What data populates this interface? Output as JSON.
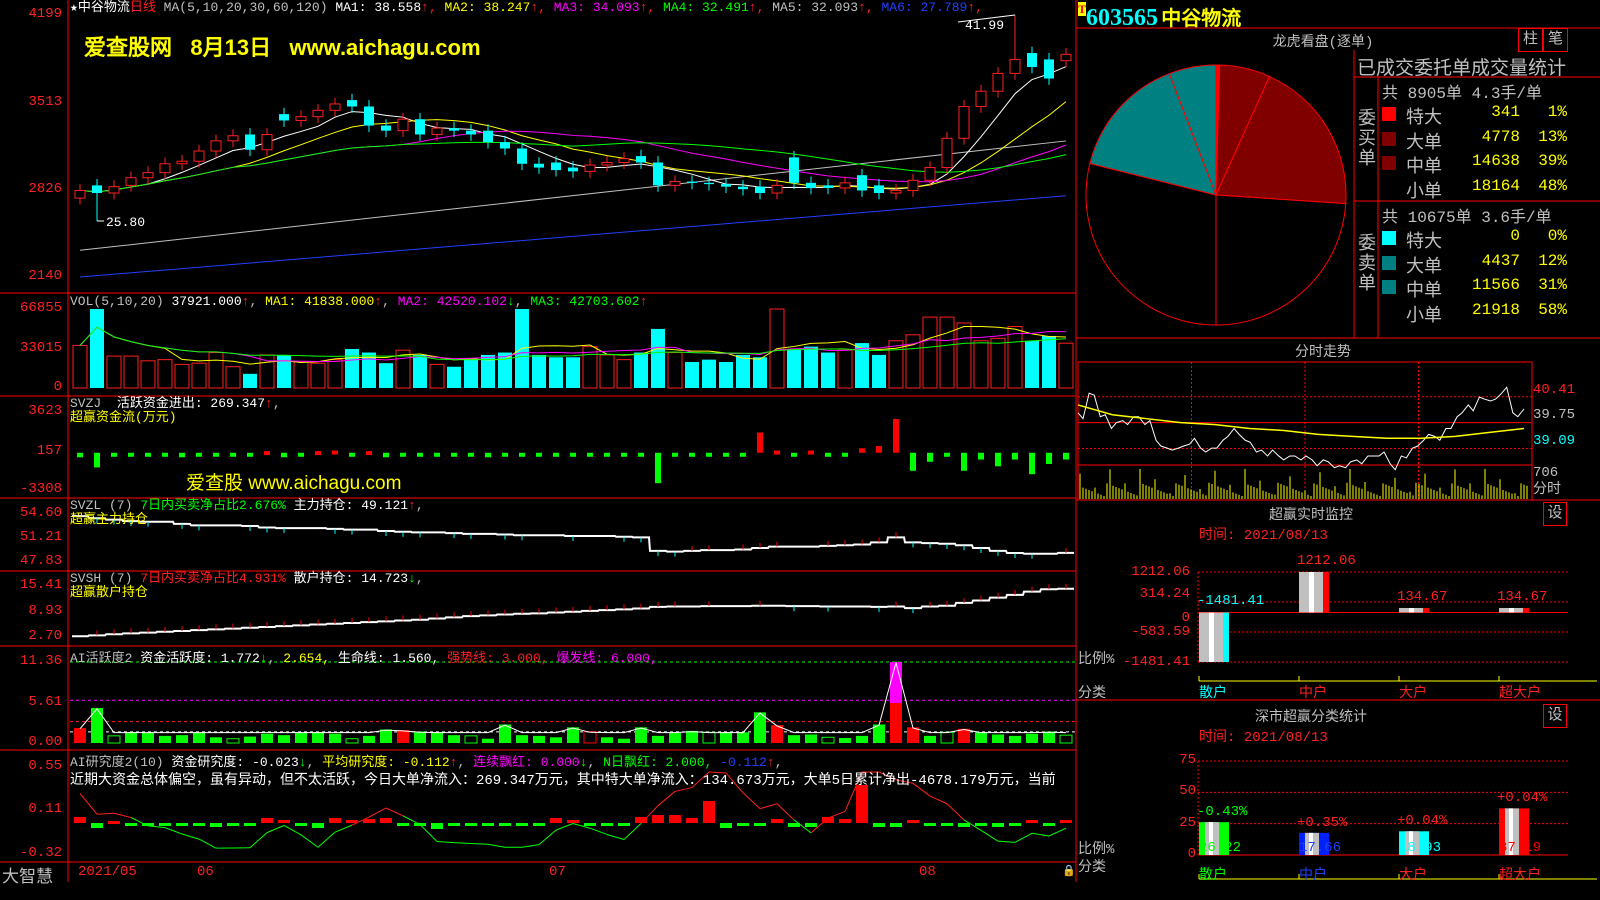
{
  "stock": {
    "code": "603565",
    "name": "中谷物流",
    "badge": "T"
  },
  "main": {
    "title_star": "★",
    "title_name": "中谷物流",
    "period": "日线",
    "ma_params": "MA(5,10,20,30,60,120)",
    "ma_legend": [
      {
        "label": "MA1: 38.558",
        "arrow": "↑",
        "color": "#ffffff"
      },
      {
        "label": "MA2: 38.247",
        "arrow": "↑",
        "color": "#ffff00"
      },
      {
        "label": "MA3: 34.093",
        "arrow": "↑",
        "color": "#ff00ff"
      },
      {
        "label": "MA4: 32.491",
        "arrow": "↑",
        "color": "#00ff00"
      },
      {
        "label": "MA5: 32.093",
        "arrow": "↑",
        "color": "#c0c0c0"
      },
      {
        "label": "MA6: 27.789",
        "arrow": "↑",
        "color": "#2040ff"
      }
    ],
    "watermark": {
      "site": "爱查股网",
      "date": "8月13日",
      "url": "www.aichagu.com"
    },
    "y_ticks": [
      "4199",
      "3513",
      "2826",
      "2140"
    ],
    "high_label": "41.99",
    "low_label": "25.80"
  },
  "chart_data": [
    {
      "type": "candlestick",
      "name": "日线",
      "ylim": [
        21.4,
        41.99
      ],
      "open": [
        27.6,
        28.6,
        28.0,
        28.6,
        29.2,
        29.6,
        30.3,
        30.5,
        31.3,
        32.1,
        32.6,
        31.4,
        34.2,
        33.7,
        34.0,
        34.5,
        35.3,
        34.8,
        33.3,
        32.9,
        33.8,
        32.6,
        33.1,
        32.9,
        32.9,
        32.0,
        31.5,
        30.3,
        30.4,
        30.0,
        29.7,
        30.2,
        30.4,
        30.9,
        30.4,
        28.6,
        28.9,
        28.8,
        28.7,
        28.5,
        28.5,
        28.0,
        30.8,
        28.8,
        28.6,
        28.4,
        29.4,
        28.6,
        28.0,
        28.2,
        29.0,
        30.0,
        32.3,
        34.8,
        36.0,
        37.4,
        39.0,
        38.5,
        38.4
      ],
      "close": [
        28.2,
        28.0,
        28.5,
        29.2,
        29.6,
        30.3,
        30.5,
        31.3,
        32.1,
        32.5,
        31.4,
        32.6,
        33.7,
        34.0,
        34.5,
        35.0,
        34.8,
        33.3,
        32.9,
        33.8,
        32.6,
        33.1,
        32.9,
        32.6,
        32.0,
        31.5,
        30.3,
        30.0,
        29.8,
        29.7,
        30.2,
        30.4,
        30.7,
        30.4,
        28.6,
        28.9,
        28.8,
        28.7,
        28.5,
        28.3,
        28.0,
        28.6,
        28.8,
        28.4,
        28.4,
        28.8,
        28.2,
        28.0,
        28.2,
        29.0,
        30.0,
        32.3,
        34.8,
        36.0,
        37.4,
        38.5,
        37.9,
        37.0,
        38.9
      ],
      "high": 41.99,
      "low": 25.8,
      "ma_long": {
        "MA5": [
          23.5,
          32.093
        ],
        "MA6": [
          21.4,
          27.789
        ]
      },
      "x_ticks": [
        "2021/05",
        "06",
        "07",
        "08"
      ]
    },
    {
      "type": "bar",
      "name": "VOL",
      "ylim": [
        0,
        66855
      ],
      "y_ticks": [
        "66855",
        "33015",
        "0"
      ],
      "values": [
        36000,
        66855,
        27000,
        27000,
        23000,
        24000,
        20000,
        21000,
        30000,
        18000,
        12000,
        28000,
        28000,
        22000,
        21000,
        24000,
        33000,
        30000,
        21000,
        32000,
        28000,
        20000,
        18000,
        25000,
        28000,
        30000,
        66855,
        28000,
        26000,
        26000,
        35000,
        28000,
        24000,
        30000,
        50000,
        30000,
        22000,
        24000,
        22000,
        28000,
        26000,
        66855,
        33000,
        35000,
        30000,
        32000,
        38000,
        28000,
        40000,
        45000,
        60000,
        60000,
        55000,
        40000,
        42000,
        52000,
        40000,
        44000,
        37921
      ]
    },
    {
      "type": "bar",
      "name": "SVZJ",
      "ylim": [
        -3308,
        3623
      ],
      "y_ticks": [
        "3623",
        "157",
        "-3308"
      ],
      "values": [
        -400,
        -1300,
        -300,
        -200,
        -350,
        -300,
        -400,
        -250,
        -200,
        -350,
        -300,
        150,
        -400,
        -300,
        150,
        200,
        -300,
        150,
        -400,
        -200,
        -300,
        -250,
        -350,
        -150,
        -400,
        -300,
        -350,
        -200,
        -250,
        -300,
        -150,
        -300,
        -200,
        -250,
        -2700,
        -150,
        -200,
        -150,
        -300,
        -200,
        1800,
        200,
        -300,
        200,
        -250,
        -200,
        400,
        600,
        3000,
        -1600,
        -800,
        -300,
        -1600,
        -600,
        -1200,
        -600,
        -1900,
        -1000,
        -600
      ]
    },
    {
      "type": "line",
      "name": "SVZL",
      "ylim": [
        47.83,
        54.6
      ],
      "y_ticks": [
        "54.60",
        "51.21",
        "47.83"
      ],
      "values": [
        54.3,
        54.0,
        53.8,
        53.6,
        53.5,
        53.5,
        53.2,
        53.0,
        53.0,
        53.0,
        52.9,
        52.7,
        52.6,
        52.6,
        52.6,
        52.5,
        52.4,
        52.4,
        52.2,
        52.1,
        52.0,
        52.0,
        51.9,
        51.8,
        51.8,
        51.7,
        51.6,
        51.6,
        51.6,
        51.5,
        51.5,
        51.5,
        51.4,
        51.3,
        49.4,
        49.3,
        49.4,
        49.5,
        49.5,
        49.6,
        49.8,
        50.0,
        50.0,
        50.0,
        50.1,
        50.2,
        50.3,
        50.6,
        51.3,
        50.6,
        50.5,
        50.4,
        50.2,
        49.8,
        49.4,
        49.1,
        49.0,
        49.0,
        49.121
      ]
    },
    {
      "type": "line",
      "name": "SVSH",
      "ylim": [
        2.7,
        15.41
      ],
      "y_ticks": [
        "15.41",
        "8.93",
        "2.70"
      ],
      "values": [
        2.9,
        3.1,
        3.4,
        3.6,
        3.8,
        4.0,
        4.2,
        4.4,
        4.6,
        4.8,
        5.0,
        5.2,
        5.4,
        5.6,
        5.8,
        6.0,
        6.2,
        6.4,
        6.6,
        6.8,
        7.0,
        7.3,
        7.6,
        7.9,
        8.1,
        8.3,
        8.5,
        8.6,
        8.8,
        9.0,
        9.2,
        9.4,
        9.6,
        9.8,
        10.2,
        10.3,
        10.3,
        10.4,
        10.4,
        10.4,
        10.5,
        10.5,
        10.4,
        10.4,
        10.3,
        10.3,
        10.3,
        10.2,
        10.3,
        9.9,
        10.3,
        10.5,
        11.2,
        11.8,
        12.5,
        13.2,
        14.0,
        14.6,
        14.723
      ]
    },
    {
      "type": "bar",
      "name": "AI活跃度2",
      "ylim": [
        0,
        11.36
      ],
      "y_ticks": [
        "11.36",
        "5.61",
        "0.00"
      ],
      "values": [
        2.1,
        4.9,
        1.0,
        1.5,
        1.4,
        1.0,
        1.1,
        1.5,
        0.8,
        0.6,
        0.9,
        1.3,
        1.1,
        1.4,
        1.5,
        1.3,
        0.6,
        1.0,
        1.9,
        1.8,
        1.6,
        1.4,
        1.1,
        1.0,
        0.6,
        2.6,
        1.1,
        1.0,
        0.8,
        2.2,
        1.6,
        0.8,
        0.6,
        2.2,
        1.0,
        1.4,
        1.7,
        1.5,
        1.5,
        1.5,
        4.3,
        2.5,
        1.1,
        1.2,
        0.8,
        0.7,
        1.0,
        2.6,
        11.36,
        2.2,
        1.0,
        1.5,
        2.0,
        1.5,
        1.2,
        1.0,
        1.3,
        1.6,
        1.1
      ],
      "lines": {
        "生命线": 1.56,
        "强势线": 3.0,
        "爆发线": 6.0,
        "top": 11.36
      }
    },
    {
      "type": "bar",
      "name": "AI研究度2(10)",
      "ylim": [
        -0.32,
        0.55
      ],
      "y_ticks": [
        "0.55",
        "0.11",
        "-0.32"
      ],
      "values": [
        0.05,
        -0.06,
        0.01,
        -0.01,
        -0.03,
        -0.01,
        -0.03,
        -0.03,
        -0.05,
        -0.02,
        -0.02,
        0.04,
        0.02,
        -0.04,
        -0.06,
        0.04,
        0.02,
        0.03,
        0.04,
        -0.02,
        -0.03,
        -0.07,
        -0.02,
        -0.02,
        -0.02,
        -0.03,
        -0.02,
        -0.01,
        0.04,
        0.02,
        -0.02,
        -0.03,
        -0.03,
        0.05,
        0.07,
        0.07,
        0.04,
        0.21,
        -0.06,
        -0.04,
        -0.04,
        0.03,
        -0.05,
        -0.05,
        0.05,
        0.03,
        0.37,
        -0.05,
        -0.05,
        0.02,
        -0.02,
        -0.01,
        -0.05,
        -0.04,
        -0.05,
        -0.02,
        0.02,
        -0.02,
        0.02
      ]
    },
    {
      "type": "pie",
      "name": "龙虎看盘(逐单)"
    },
    {
      "type": "line",
      "name": "分时走势",
      "y_ticks": [
        "40.41",
        "39.75",
        "39.09"
      ],
      "ylim": [
        38.44,
        41.04
      ],
      "price": [
        40.0,
        40.5,
        39.9,
        39.6,
        39.8,
        39.9,
        39.7,
        39.3,
        39.1,
        39.1,
        39.2,
        39.1,
        39.1,
        39.3,
        39.6,
        39.3,
        39.0,
        38.9,
        38.9,
        38.9,
        38.8,
        38.8,
        38.8,
        38.6,
        38.6,
        38.8,
        38.9,
        38.9,
        38.7,
        38.9,
        39.1,
        39.3,
        39.4,
        39.6,
        39.9,
        40.2,
        40.4,
        40.3,
        40.5,
        40.0,
        40.1
      ],
      "avg": [
        40.2,
        39.95,
        39.85,
        39.75,
        39.7,
        39.6,
        39.55,
        39.45,
        39.4,
        39.35,
        39.35,
        39.4,
        39.5,
        39.6
      ],
      "vol_label": "706",
      "vol_unit": "分时"
    },
    {
      "type": "bar",
      "name": "超赢实时监控",
      "categories": [
        "散户",
        "中户",
        "大户",
        "超大户"
      ],
      "values": [
        -1481.41,
        1212.06,
        134.67,
        134.67
      ],
      "ylim": [
        -1481.41,
        1212.06
      ],
      "y_ticks": [
        "1212.06",
        "314.24",
        "0",
        "-583.59",
        "-1481.41"
      ]
    },
    {
      "type": "bar",
      "name": "深市超赢分类统计",
      "categories": [
        "散户",
        "中户",
        "大户",
        "超大户"
      ],
      "values": [
        26.22,
        17.66,
        18.93,
        37.19
      ],
      "changes": [
        "-0.43%",
        "+0.35%",
        "+0.04%",
        "+0.04%"
      ],
      "ylim": [
        0,
        75
      ],
      "y_ticks": [
        "75",
        "50",
        "25",
        "0"
      ]
    }
  ],
  "vol_legend": {
    "name": "VOL(5,10,20)",
    "value": "37921.000",
    "ma1": "MA1: 41838.000",
    "ma2": "MA2: 42520.102",
    "ma3": "MA3: 42703.602"
  },
  "svzj_legend": {
    "name": "SVZJ",
    "label": "活跃资金进出: 269.347",
    "sub": "超赢资金流(万元)",
    "watermark": "爱查股 www.aichagu.com"
  },
  "svzl_legend": {
    "name": "SVZL (7)",
    "ratio": "7日内买卖净占比2.676%",
    "hold": "主力持仓: 49.121",
    "sub": "超赢主力持仓"
  },
  "svsh_legend": {
    "name": "SVSH (7)",
    "ratio": "7日内买卖净占比4.931%",
    "hold": "散户持仓: 14.723",
    "sub": "超赢散户持仓"
  },
  "ai1_legend": {
    "name": "AI活跃度2",
    "a": "资金活跃度: 1.772",
    "b": "2.654,",
    "c": "生命线: 1.560,",
    "d": "强势线: 3.000,",
    "e": "爆发线: 6.000,"
  },
  "ai2_legend": {
    "name": "AI研究度2(10)",
    "a": "资金研究度: -0.023",
    "b": "平均研究度: -0.112",
    "c": "连续飘红: 0.000",
    "d": "N日飘红: 2.000,",
    "e": "-0.112",
    "comment": "近期大资金总体偏空，虽有异动，但不太活跃，今日大单净流入：269.347万元，其中特大单净流入：134.673万元，大单5日累计净出-4678.179万元，当前"
  },
  "bottom": {
    "brand": "大智慧"
  },
  "longhu": {
    "title": "龙虎看盘(逐单)",
    "btn_bar": "柱",
    "btn_pen": "笔",
    "table_title": "已成交委托单成交量统计",
    "buy": {
      "side": "委买单",
      "summary": "共 8905单 4.3手/单",
      "rows": [
        {
          "label": "特大",
          "value": "341",
          "pct": "1%",
          "color": "#ff0000"
        },
        {
          "label": "大单",
          "value": "4778",
          "pct": "13%",
          "color": "#800000"
        },
        {
          "label": "中单",
          "value": "14638",
          "pct": "39%",
          "color": "#800000"
        },
        {
          "label": "小单",
          "value": "18164",
          "pct": "48%",
          "color": ""
        }
      ]
    },
    "sell": {
      "side": "委卖单",
      "summary": "共 10675单 3.6手/单",
      "rows": [
        {
          "label": "特大",
          "value": "0",
          "pct": "0%",
          "color": "#00ffff"
        },
        {
          "label": "大单",
          "value": "4437",
          "pct": "12%",
          "color": "#008080"
        },
        {
          "label": "中单",
          "value": "11566",
          "pct": "31%",
          "color": "#008080"
        },
        {
          "label": "小单",
          "value": "21918",
          "pct": "58%",
          "color": ""
        }
      ]
    }
  },
  "fenshi": {
    "title": "分时走势"
  },
  "monitor": {
    "title": "超赢实时监控",
    "btn": "设",
    "time": "时间: 2021/08/13",
    "ratio": "比例%",
    "cat": "分类",
    "bar_labels": [
      "-1481.41",
      "1212.06",
      "134.67",
      "134.67"
    ]
  },
  "szstat": {
    "title": "深市超赢分类统计",
    "btn": "设",
    "time": "时间: 2021/08/13",
    "ratio": "比例%",
    "cat": "分类",
    "values_text": [
      "26.22",
      "17.66",
      "18.93",
      "37.19"
    ]
  },
  "colors": {
    "up": "#ff2020",
    "down": "#00ffff",
    "grid": "#ff0000",
    "ma": [
      "#ffffff",
      "#ffff00",
      "#ff00ff",
      "#00ff00",
      "#c0c0c0",
      "#2040ff"
    ]
  }
}
